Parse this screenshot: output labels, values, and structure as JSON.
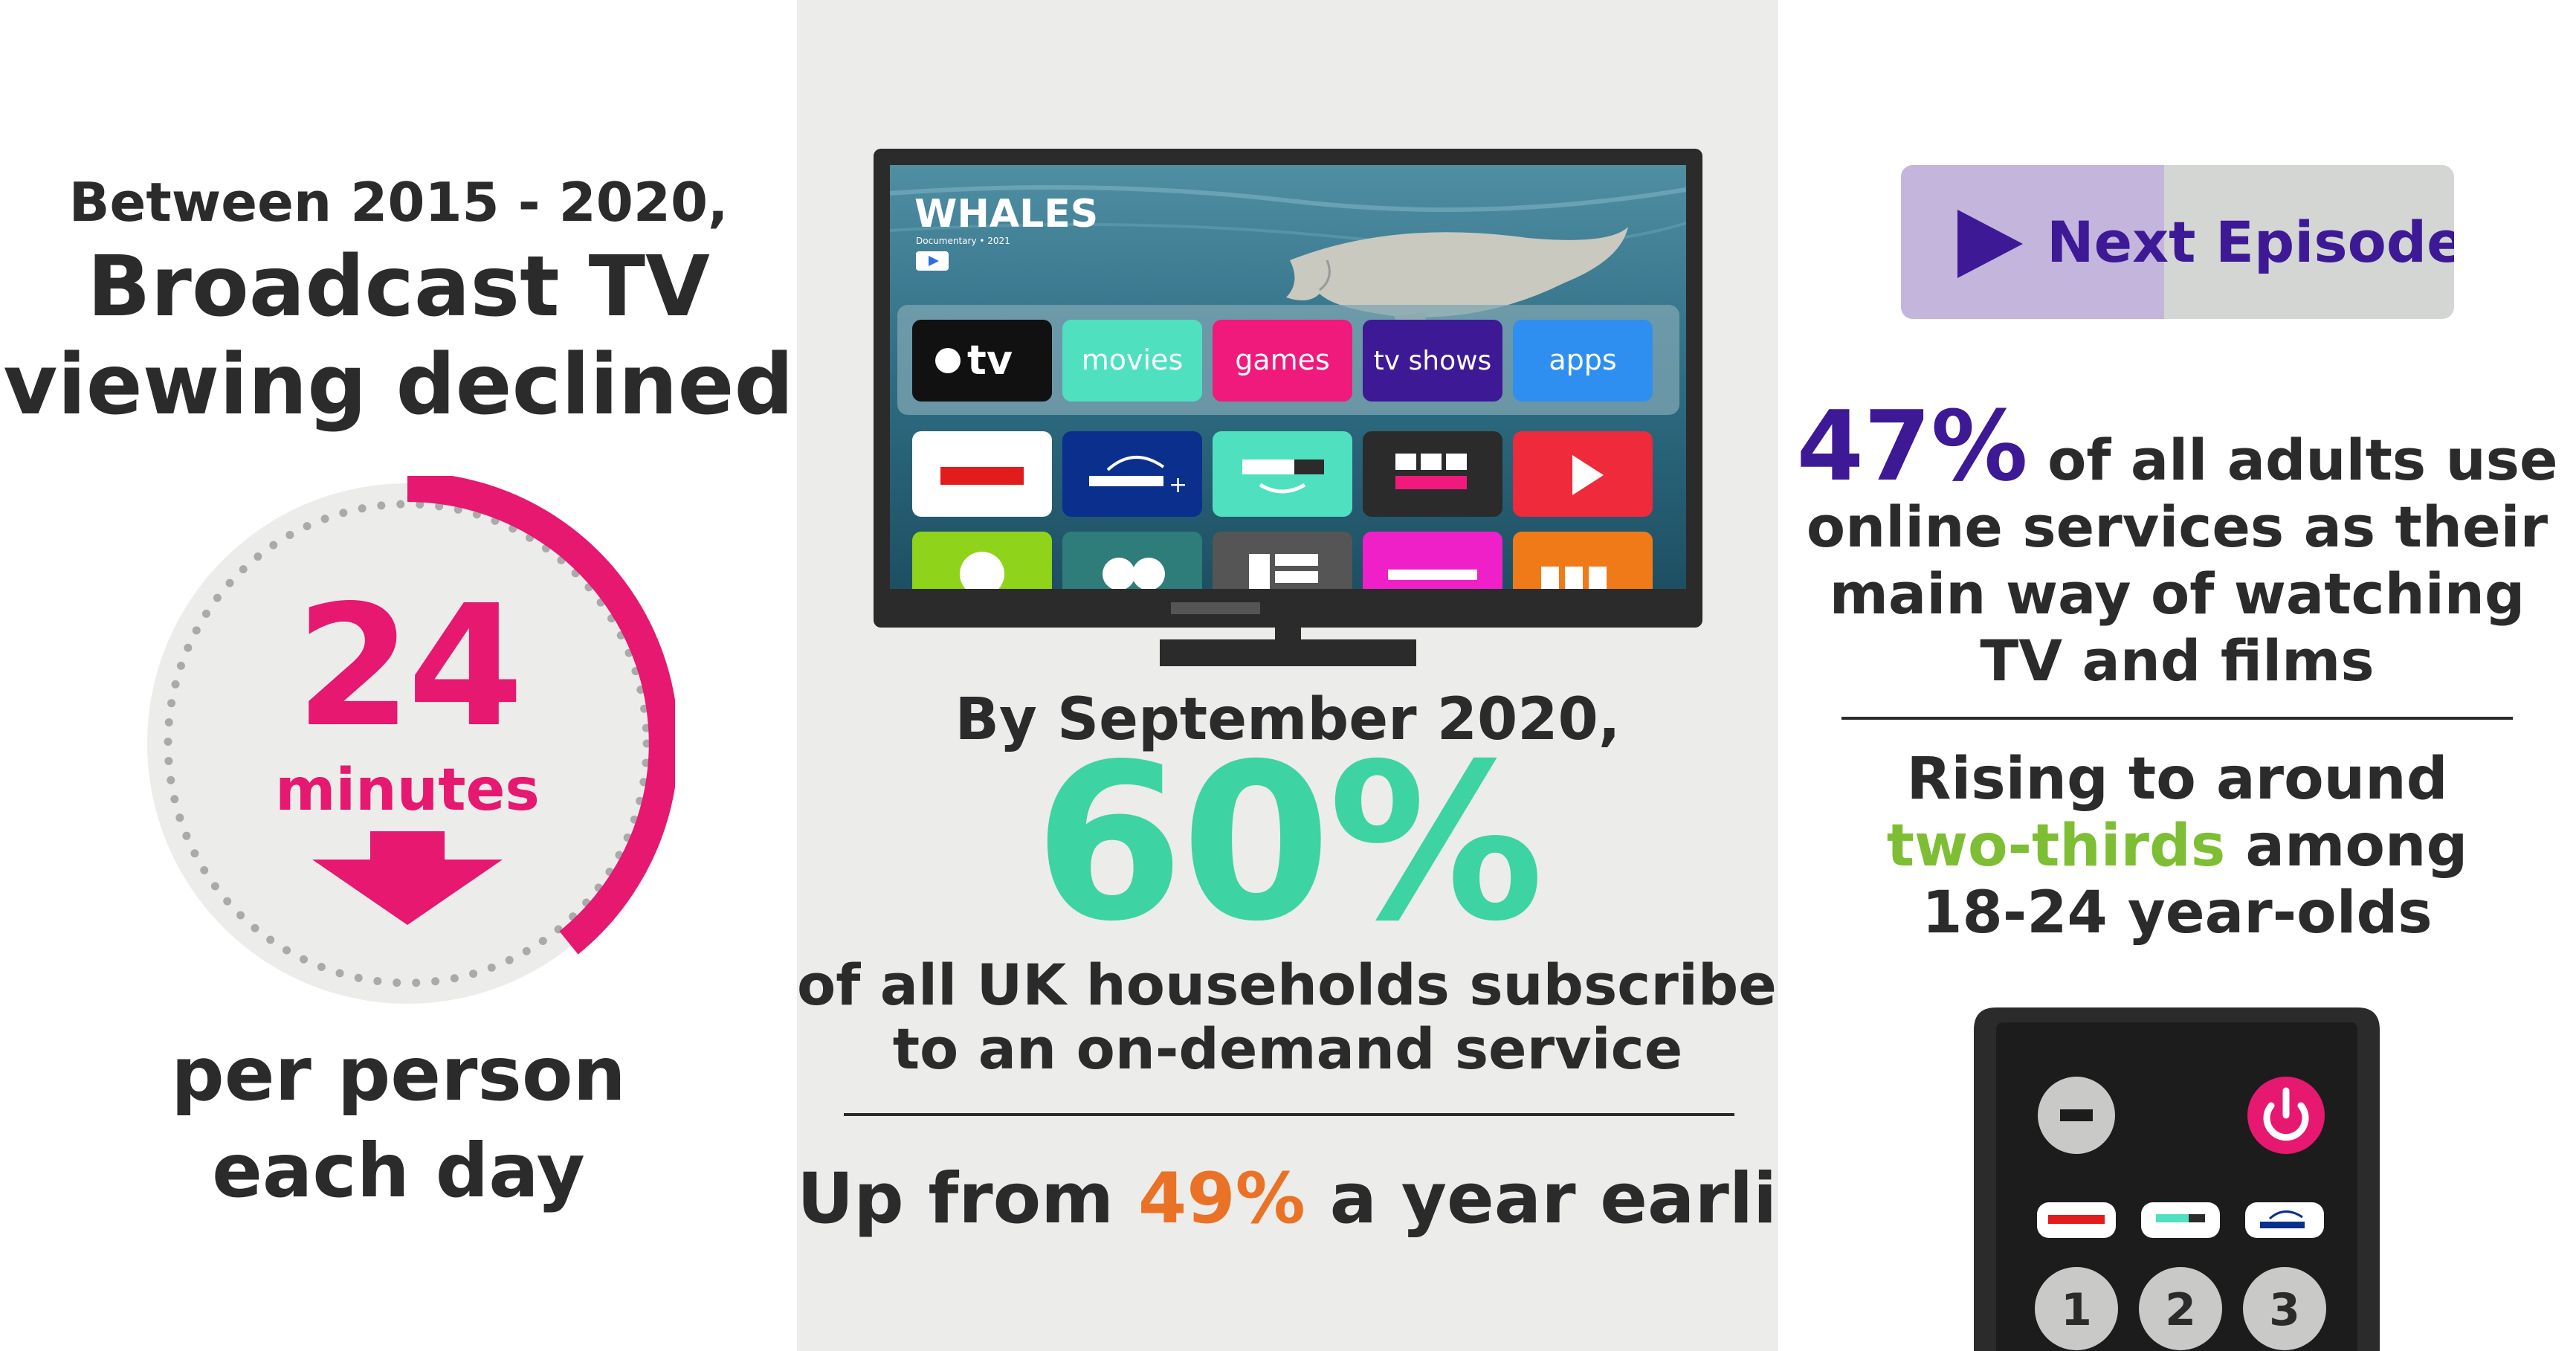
{
  "left": {
    "intro": "Between 2015 - 2020,",
    "headline_line1": "Broadcast TV",
    "headline_line2": "viewing declined",
    "number": "24",
    "unit": "minutes",
    "footer_line1": "per person",
    "footer_line2": "each day",
    "accent_color": "#e6186f"
  },
  "tv": {
    "title": "WHALES",
    "subtitle": "Documentary • 2021",
    "row1": [
      {
        "label": "tv",
        "color": "#111111",
        "icon": "apple-logo-icon"
      },
      {
        "label": "movies",
        "color": "#4fe0c0"
      },
      {
        "label": "games",
        "color": "#f0197c"
      },
      {
        "label": "tv shows",
        "color": "#3d1996"
      },
      {
        "label": "apps",
        "color": "#2f8ff0"
      }
    ]
  },
  "middle": {
    "intro": "By September 2020,",
    "big_number": "60%",
    "sub_line1": "of all UK households subscribed",
    "sub_line2": "to an on-demand service",
    "up_prefix": "Up from ",
    "up_value": "49%",
    "up_suffix": " a year earlier",
    "accent_color": "#3ed3a3"
  },
  "right": {
    "button_label": "Next Episode",
    "stat_value": "47%",
    "stat_line1": " of all adults use",
    "stat_line2": "online services as their",
    "stat_line3": "main way of watching",
    "stat_line4": "TV and films",
    "rise_line1": "Rising to around",
    "rise_highlight": "two-thirds",
    "rise_rest": " among",
    "rise_line3": "18-24 year-olds",
    "remote_buttons": [
      "1",
      "2",
      "3"
    ],
    "accent_color": "#3d1996"
  }
}
